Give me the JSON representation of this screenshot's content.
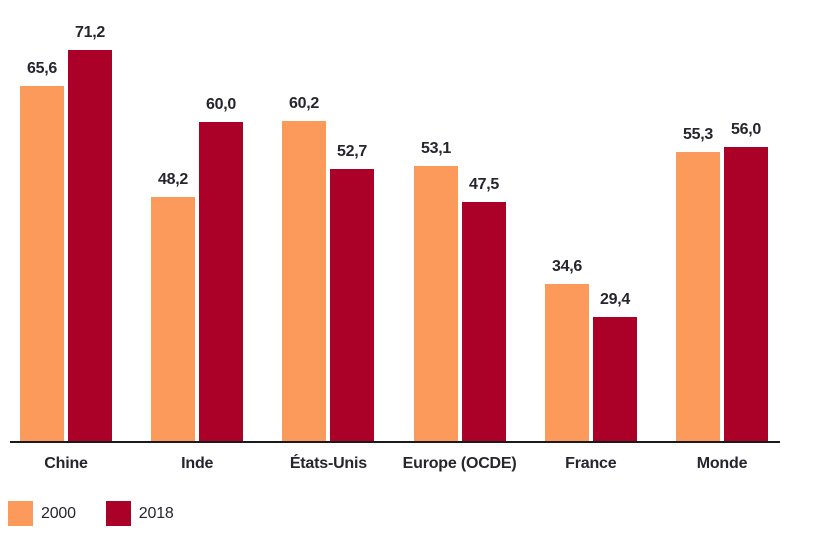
{
  "chart_data": {
    "type": "bar",
    "title": "",
    "xlabel": "",
    "ylabel": "",
    "categories": [
      "Chine",
      "Inde",
      "États-Unis",
      "Europe (OCDE)",
      "France",
      "Monde"
    ],
    "series": [
      {
        "name": "2000",
        "color": "#FC9A5B",
        "values": [
          65.6,
          48.2,
          60.2,
          53.1,
          34.6,
          55.3
        ],
        "labels": [
          "65,6",
          "48,2",
          "60,2",
          "53,1",
          "34,6",
          "55,3"
        ]
      },
      {
        "name": "2018",
        "color": "#AB0028",
        "values": [
          71.2,
          60.0,
          52.7,
          47.5,
          29.4,
          56.0
        ],
        "labels": [
          "71,2",
          "60,0",
          "52,7",
          "47,5",
          "29,4",
          "56,0"
        ]
      }
    ],
    "value_label_format": "french-decimal-comma",
    "ylim": [
      9.7,
      78
    ],
    "grid": false,
    "y_axis_visible": false,
    "legend_position": "bottom-left"
  },
  "colors": {
    "series_2000": "#FC9A5B",
    "series_2018": "#AB0028",
    "text": "#26252E",
    "axis_line": "#1a1a1a",
    "background": "#ffffff"
  }
}
